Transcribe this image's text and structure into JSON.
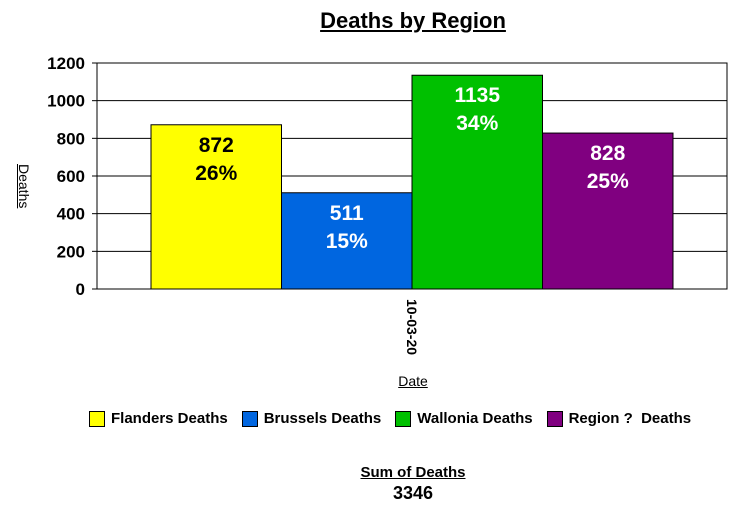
{
  "chart_data": {
    "type": "bar",
    "title": "Deaths by Region",
    "ylabel": "Deaths",
    "xlabel": "Date",
    "categories": [
      "10-03-20"
    ],
    "ylim": [
      0,
      1200
    ],
    "yticks": [
      0,
      200,
      400,
      600,
      800,
      1000,
      1200
    ],
    "grid": true,
    "legend_position": "bottom",
    "series": [
      {
        "name": "Flanders Deaths",
        "values": [
          872
        ],
        "percent": "26%",
        "color": "#ffff00"
      },
      {
        "name": "Brussels Deaths",
        "values": [
          511
        ],
        "percent": "15%",
        "color": "#0066e0"
      },
      {
        "name": "Wallonia Deaths",
        "values": [
          1135
        ],
        "percent": "34%",
        "color": "#00c000"
      },
      {
        "name": "Region ?  Deaths",
        "values": [
          828
        ],
        "percent": "25%",
        "color": "#800080"
      }
    ]
  },
  "summary": {
    "label": "Sum of Deaths",
    "value": "3346"
  }
}
